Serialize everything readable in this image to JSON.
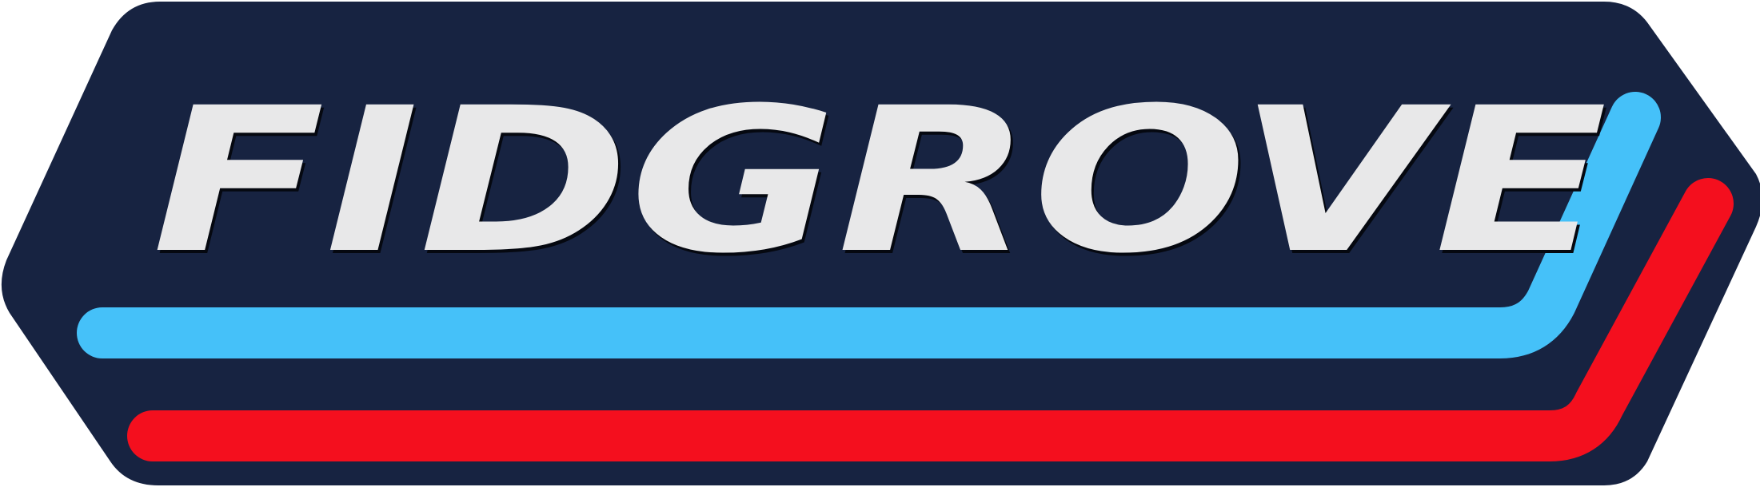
{
  "logo": {
    "wordmark": "FIDGROVE",
    "colors": {
      "badge_fill": "#172341",
      "text_fill": "#E8E8E9",
      "text_shadow": "#050810",
      "stripe_top": "#45C1F9",
      "stripe_bottom": "#F40F1E"
    }
  }
}
